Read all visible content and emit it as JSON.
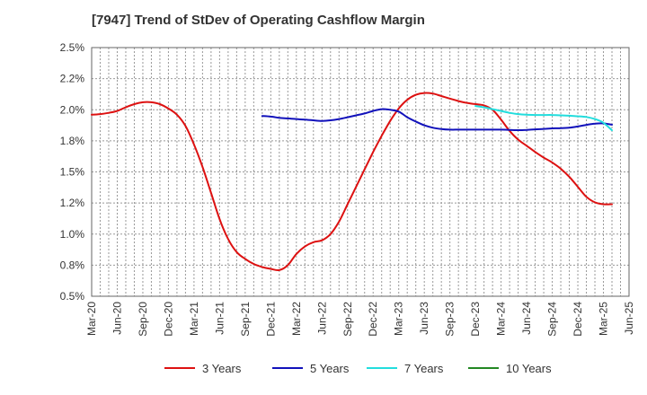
{
  "chart_data": {
    "type": "line",
    "title": "[7947]  Trend of StDev of Operating Cashflow Margin",
    "xlabel": "",
    "ylabel": "",
    "x_ticks": [
      "Mar-20",
      "Jun-20",
      "Sep-20",
      "Dec-20",
      "Mar-21",
      "Jun-21",
      "Sep-21",
      "Dec-21",
      "Mar-22",
      "Jun-22",
      "Sep-22",
      "Dec-22",
      "Mar-23",
      "Jun-23",
      "Sep-23",
      "Dec-23",
      "Mar-24",
      "Jun-24",
      "Sep-24",
      "Dec-24",
      "Mar-25",
      "Jun-25"
    ],
    "y_ticks": [
      "0.5%",
      "0.8%",
      "1.0%",
      "1.2%",
      "1.5%",
      "1.8%",
      "2.0%",
      "2.2%",
      "2.5%"
    ],
    "y_tick_values": [
      0.5,
      0.75,
      1.0,
      1.25,
      1.5,
      1.75,
      2.0,
      2.25,
      2.5
    ],
    "ylim": [
      0.5,
      2.5
    ],
    "x_range": [
      "Mar-20",
      "Jun-25"
    ],
    "grid": "dotted",
    "legend_position": "bottom",
    "series": [
      {
        "name": "3 Years",
        "color": "#dd1111",
        "points": [
          [
            "Mar-20",
            1.96
          ],
          [
            "Apr-20",
            1.965
          ],
          [
            "May-20",
            1.975
          ],
          [
            "Jun-20",
            1.99
          ],
          [
            "Jul-20",
            2.02
          ],
          [
            "Aug-20",
            2.045
          ],
          [
            "Sep-20",
            2.06
          ],
          [
            "Oct-20",
            2.06
          ],
          [
            "Nov-20",
            2.045
          ],
          [
            "Dec-20",
            2.01
          ],
          [
            "Jan-21",
            1.96
          ],
          [
            "Feb-21",
            1.87
          ],
          [
            "Mar-21",
            1.72
          ],
          [
            "Apr-21",
            1.54
          ],
          [
            "May-21",
            1.33
          ],
          [
            "Jun-21",
            1.12
          ],
          [
            "Jul-21",
            0.96
          ],
          [
            "Aug-21",
            0.855
          ],
          [
            "Sep-21",
            0.8
          ],
          [
            "Oct-21",
            0.76
          ],
          [
            "Nov-21",
            0.735
          ],
          [
            "Dec-21",
            0.72
          ],
          [
            "Jan-22",
            0.71
          ],
          [
            "Feb-22",
            0.75
          ],
          [
            "Mar-22",
            0.84
          ],
          [
            "Apr-22",
            0.9
          ],
          [
            "May-22",
            0.935
          ],
          [
            "Jun-22",
            0.95
          ],
          [
            "Jul-22",
            1.0
          ],
          [
            "Aug-22",
            1.1
          ],
          [
            "Sep-22",
            1.24
          ],
          [
            "Oct-22",
            1.38
          ],
          [
            "Nov-22",
            1.52
          ],
          [
            "Dec-22",
            1.66
          ],
          [
            "Jan-23",
            1.79
          ],
          [
            "Feb-23",
            1.91
          ],
          [
            "Mar-23",
            2.01
          ],
          [
            "Apr-23",
            2.08
          ],
          [
            "May-23",
            2.12
          ],
          [
            "Jun-23",
            2.135
          ],
          [
            "Jul-23",
            2.13
          ],
          [
            "Aug-23",
            2.11
          ],
          [
            "Sep-23",
            2.09
          ],
          [
            "Oct-23",
            2.07
          ],
          [
            "Nov-23",
            2.055
          ],
          [
            "Dec-23",
            2.045
          ],
          [
            "Jan-24",
            2.035
          ],
          [
            "Feb-24",
            2.0
          ],
          [
            "Mar-24",
            1.92
          ],
          [
            "Apr-24",
            1.83
          ],
          [
            "May-24",
            1.76
          ],
          [
            "Jun-24",
            1.71
          ],
          [
            "Jul-24",
            1.66
          ],
          [
            "Aug-24",
            1.615
          ],
          [
            "Sep-24",
            1.575
          ],
          [
            "Oct-24",
            1.525
          ],
          [
            "Nov-24",
            1.46
          ],
          [
            "Dec-24",
            1.38
          ],
          [
            "Jan-25",
            1.3
          ],
          [
            "Feb-25",
            1.255
          ],
          [
            "Mar-25",
            1.24
          ],
          [
            "Apr-25",
            1.24
          ]
        ]
      },
      {
        "name": "5 Years",
        "color": "#1111bb",
        "points": [
          [
            "Nov-21",
            1.95
          ],
          [
            "Dec-21",
            1.945
          ],
          [
            "Jan-22",
            1.935
          ],
          [
            "Feb-22",
            1.93
          ],
          [
            "Mar-22",
            1.925
          ],
          [
            "Apr-22",
            1.92
          ],
          [
            "May-22",
            1.915
          ],
          [
            "Jun-22",
            1.91
          ],
          [
            "Jul-22",
            1.915
          ],
          [
            "Aug-22",
            1.925
          ],
          [
            "Sep-22",
            1.94
          ],
          [
            "Oct-22",
            1.955
          ],
          [
            "Nov-22",
            1.97
          ],
          [
            "Dec-22",
            1.99
          ],
          [
            "Jan-23",
            2.005
          ],
          [
            "Feb-23",
            2.0
          ],
          [
            "Mar-23",
            1.985
          ],
          [
            "Apr-23",
            1.94
          ],
          [
            "May-23",
            1.905
          ],
          [
            "Jun-23",
            1.875
          ],
          [
            "Jul-23",
            1.855
          ],
          [
            "Aug-23",
            1.845
          ],
          [
            "Sep-23",
            1.84
          ],
          [
            "Oct-23",
            1.84
          ],
          [
            "Nov-23",
            1.84
          ],
          [
            "Dec-23",
            1.84
          ],
          [
            "Jan-24",
            1.84
          ],
          [
            "Feb-24",
            1.84
          ],
          [
            "Mar-24",
            1.84
          ],
          [
            "Apr-24",
            1.838
          ],
          [
            "May-24",
            1.836
          ],
          [
            "Jun-24",
            1.838
          ],
          [
            "Jul-24",
            1.842
          ],
          [
            "Aug-24",
            1.846
          ],
          [
            "Sep-24",
            1.85
          ],
          [
            "Oct-24",
            1.852
          ],
          [
            "Nov-24",
            1.856
          ],
          [
            "Dec-24",
            1.865
          ],
          [
            "Jan-25",
            1.878
          ],
          [
            "Feb-25",
            1.888
          ],
          [
            "Mar-25",
            1.89
          ],
          [
            "Apr-25",
            1.88
          ]
        ]
      },
      {
        "name": "7 Years",
        "color": "#22dddd",
        "points": [
          [
            "Dec-23",
            2.03
          ],
          [
            "Jan-24",
            2.02
          ],
          [
            "Feb-24",
            2.005
          ],
          [
            "Mar-24",
            1.99
          ],
          [
            "Apr-24",
            1.975
          ],
          [
            "May-24",
            1.965
          ],
          [
            "Jun-24",
            1.96
          ],
          [
            "Jul-24",
            1.958
          ],
          [
            "Aug-24",
            1.958
          ],
          [
            "Sep-24",
            1.958
          ],
          [
            "Oct-24",
            1.955
          ],
          [
            "Nov-24",
            1.952
          ],
          [
            "Dec-24",
            1.948
          ],
          [
            "Jan-25",
            1.942
          ],
          [
            "Feb-25",
            1.925
          ],
          [
            "Mar-25",
            1.895
          ],
          [
            "Apr-25",
            1.835
          ]
        ]
      },
      {
        "name": "10 Years",
        "color": "#228822",
        "points": []
      }
    ]
  }
}
